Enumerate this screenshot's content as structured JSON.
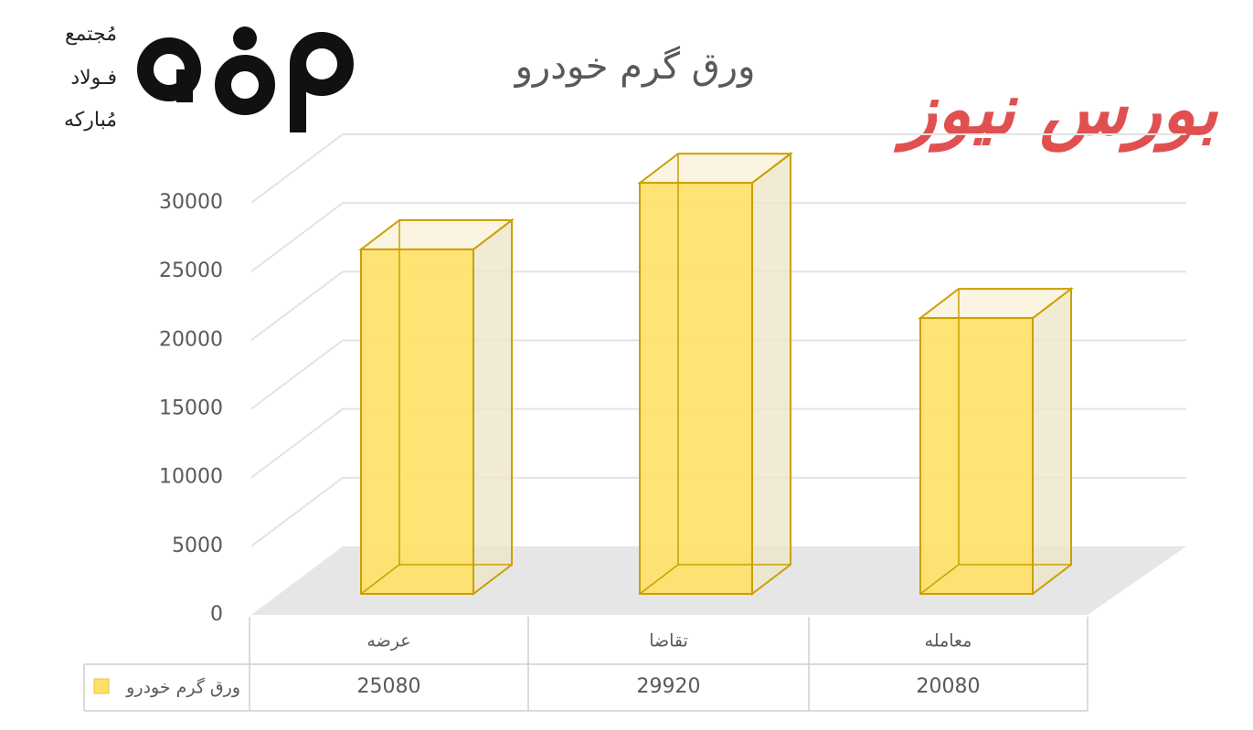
{
  "chart_data": {
    "type": "bar3d",
    "title": "ورق گرم خودرو",
    "categories": [
      "عرضه",
      "تقاضا",
      "معامله"
    ],
    "series": [
      {
        "name": "ورق گرم خودرو",
        "color": "#ffe066",
        "values": [
          25080,
          29920,
          20080
        ]
      }
    ],
    "ylim": [
      0,
      30000
    ],
    "yticks": [
      0,
      5000,
      10000,
      15000,
      20000,
      25000,
      30000
    ],
    "grid": true,
    "data_table": true
  },
  "logos": {
    "left_text": [
      "مُجتمع",
      "فـولاد",
      "مُبارکه"
    ],
    "right_text": "بورس نیوز"
  }
}
